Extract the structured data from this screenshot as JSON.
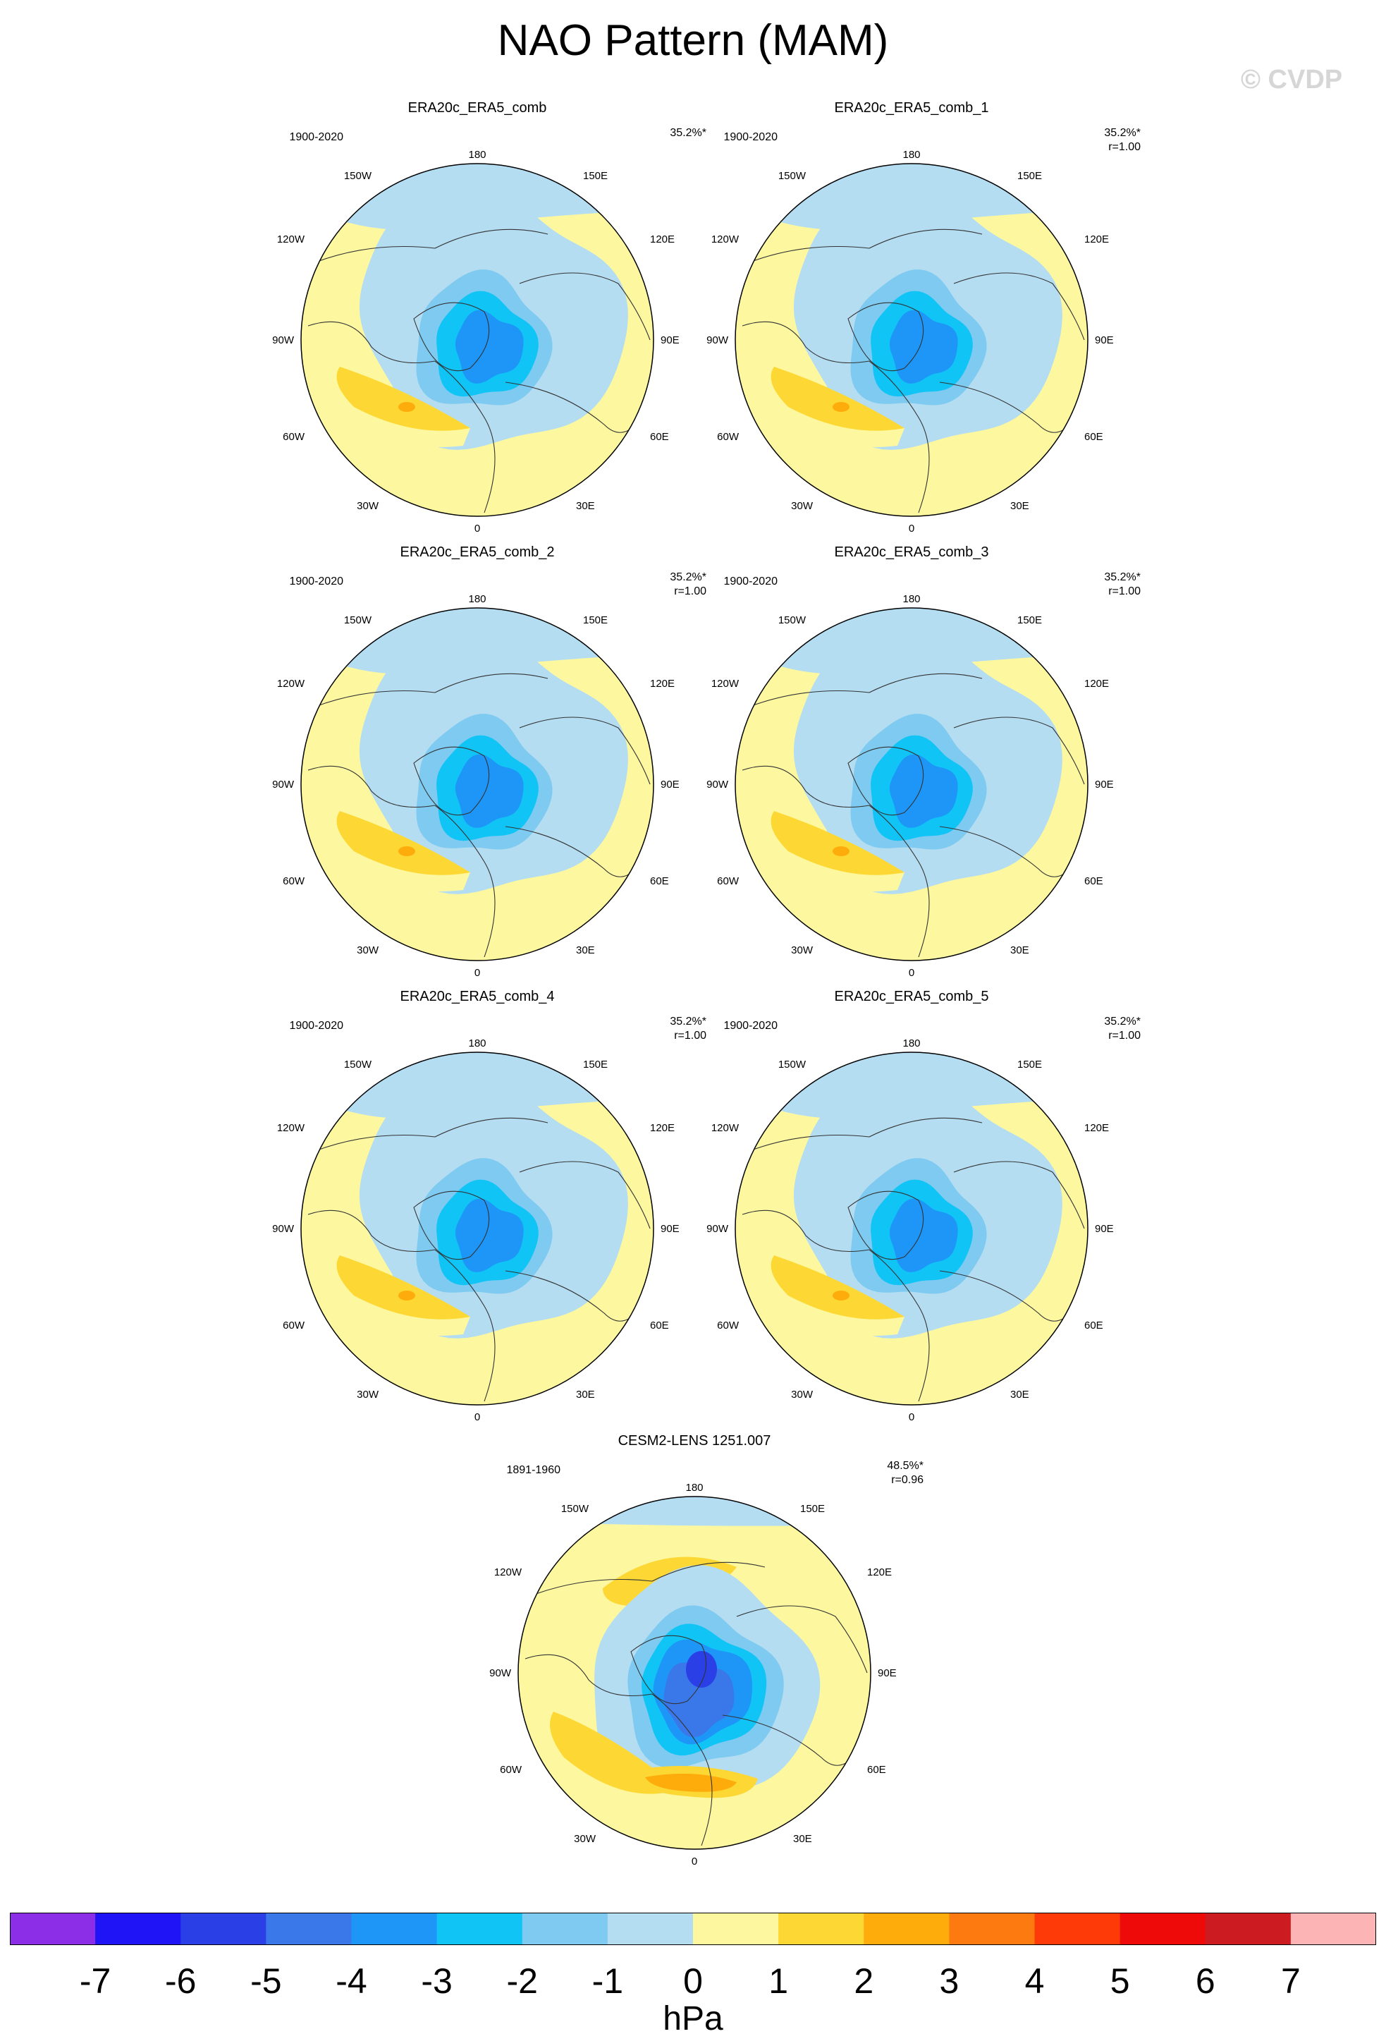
{
  "title": "NAO Pattern (MAM)",
  "watermark": "© CVDP",
  "panels": [
    {
      "id": "p0",
      "title": "ERA20c_ERA5_comb",
      "period": "1900-2020",
      "pct": "35.2%*",
      "corr": "",
      "variant": "obs"
    },
    {
      "id": "p1",
      "title": "ERA20c_ERA5_comb_1",
      "period": "1900-2020",
      "pct": "35.2%*",
      "corr": "r=1.00",
      "variant": "obs"
    },
    {
      "id": "p2",
      "title": "ERA20c_ERA5_comb_2",
      "period": "1900-2020",
      "pct": "35.2%*",
      "corr": "r=1.00",
      "variant": "obs"
    },
    {
      "id": "p3",
      "title": "ERA20c_ERA5_comb_3",
      "period": "1900-2020",
      "pct": "35.2%*",
      "corr": "r=1.00",
      "variant": "obs"
    },
    {
      "id": "p4",
      "title": "ERA20c_ERA5_comb_4",
      "period": "1900-2020",
      "pct": "35.2%*",
      "corr": "r=1.00",
      "variant": "obs"
    },
    {
      "id": "p5",
      "title": "ERA20c_ERA5_comb_5",
      "period": "1900-2020",
      "pct": "35.2%*",
      "corr": "r=1.00",
      "variant": "obs"
    },
    {
      "id": "p6",
      "title": "CESM2-LENS 1251.007",
      "period": "1891-1960",
      "pct": "48.5%*",
      "corr": "r=0.96",
      "variant": "model"
    }
  ],
  "lon_labels": {
    "top": "180",
    "tr": "150E",
    "rt": "120E",
    "right": "90E",
    "rb": "60E",
    "br": "30E",
    "bottom": "0",
    "bl": "30W",
    "lb": "60W",
    "left": "90W",
    "lt": "120W",
    "tl": "150W"
  },
  "colorbar": {
    "unit": "hPa",
    "ticks": [
      "-7",
      "-6",
      "-5",
      "-4",
      "-3",
      "-2",
      "-1",
      "0",
      "1",
      "2",
      "3",
      "4",
      "5",
      "6",
      "7"
    ],
    "colors": [
      "#8c2ee8",
      "#1e14f5",
      "#2a3fe6",
      "#3a78ea",
      "#1e96f8",
      "#10c4f6",
      "#7ecaf0",
      "#b4ddf2",
      "#fdf8a0",
      "#fdd834",
      "#fdac0c",
      "#fd7a10",
      "#fd3a08",
      "#ee0a08",
      "#cc1c22",
      "#fdb4b4"
    ]
  }
}
